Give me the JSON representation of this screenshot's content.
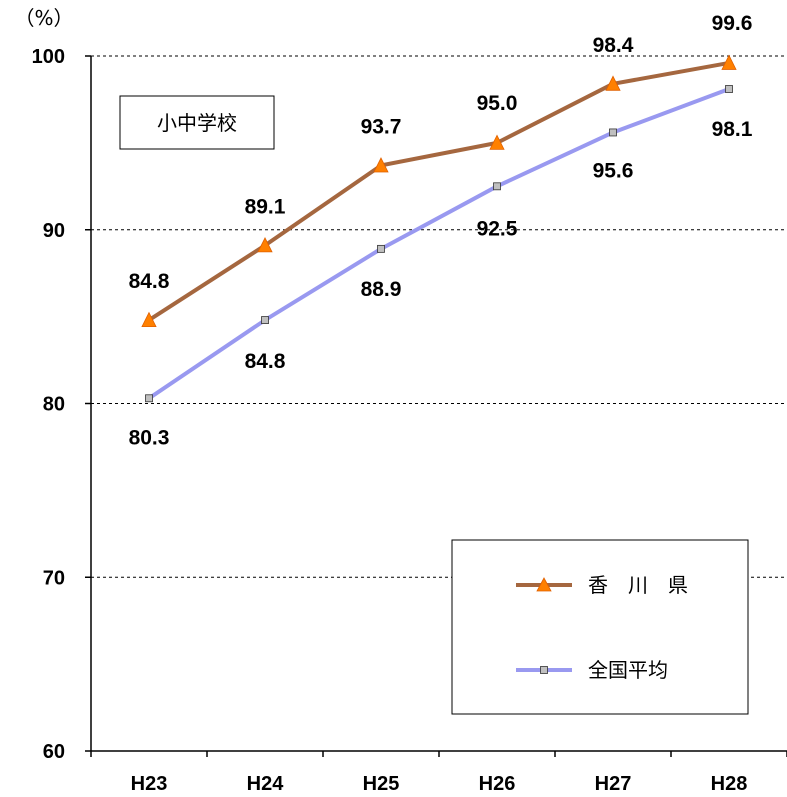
{
  "chart_data": {
    "type": "line",
    "ylabel": "（%）",
    "categories": [
      "H23",
      "H24",
      "H25",
      "H26",
      "H27",
      "H28"
    ],
    "ylim": [
      60,
      100
    ],
    "yticks": [
      60,
      70,
      80,
      90,
      100
    ],
    "grid": "horizontal dashed",
    "annotation": "小中学校",
    "legend_position": "right",
    "series": [
      {
        "name": "香　川　県",
        "values": [
          84.8,
          89.1,
          93.7,
          95.0,
          98.4,
          99.6
        ],
        "labels": [
          "84.8",
          "89.1",
          "93.7",
          "95.0",
          "98.4",
          "99.6"
        ],
        "color": "#A5673F",
        "marker": "triangle",
        "marker_color": "#FF8000"
      },
      {
        "name": "全国平均",
        "values": [
          80.3,
          84.8,
          88.9,
          92.5,
          95.6,
          98.1
        ],
        "labels": [
          "80.3",
          "84.8",
          "88.9",
          "92.5",
          "95.6",
          "98.1"
        ],
        "color": "#9999F0",
        "marker": "square",
        "marker_color": "#C0C0C0"
      }
    ]
  }
}
